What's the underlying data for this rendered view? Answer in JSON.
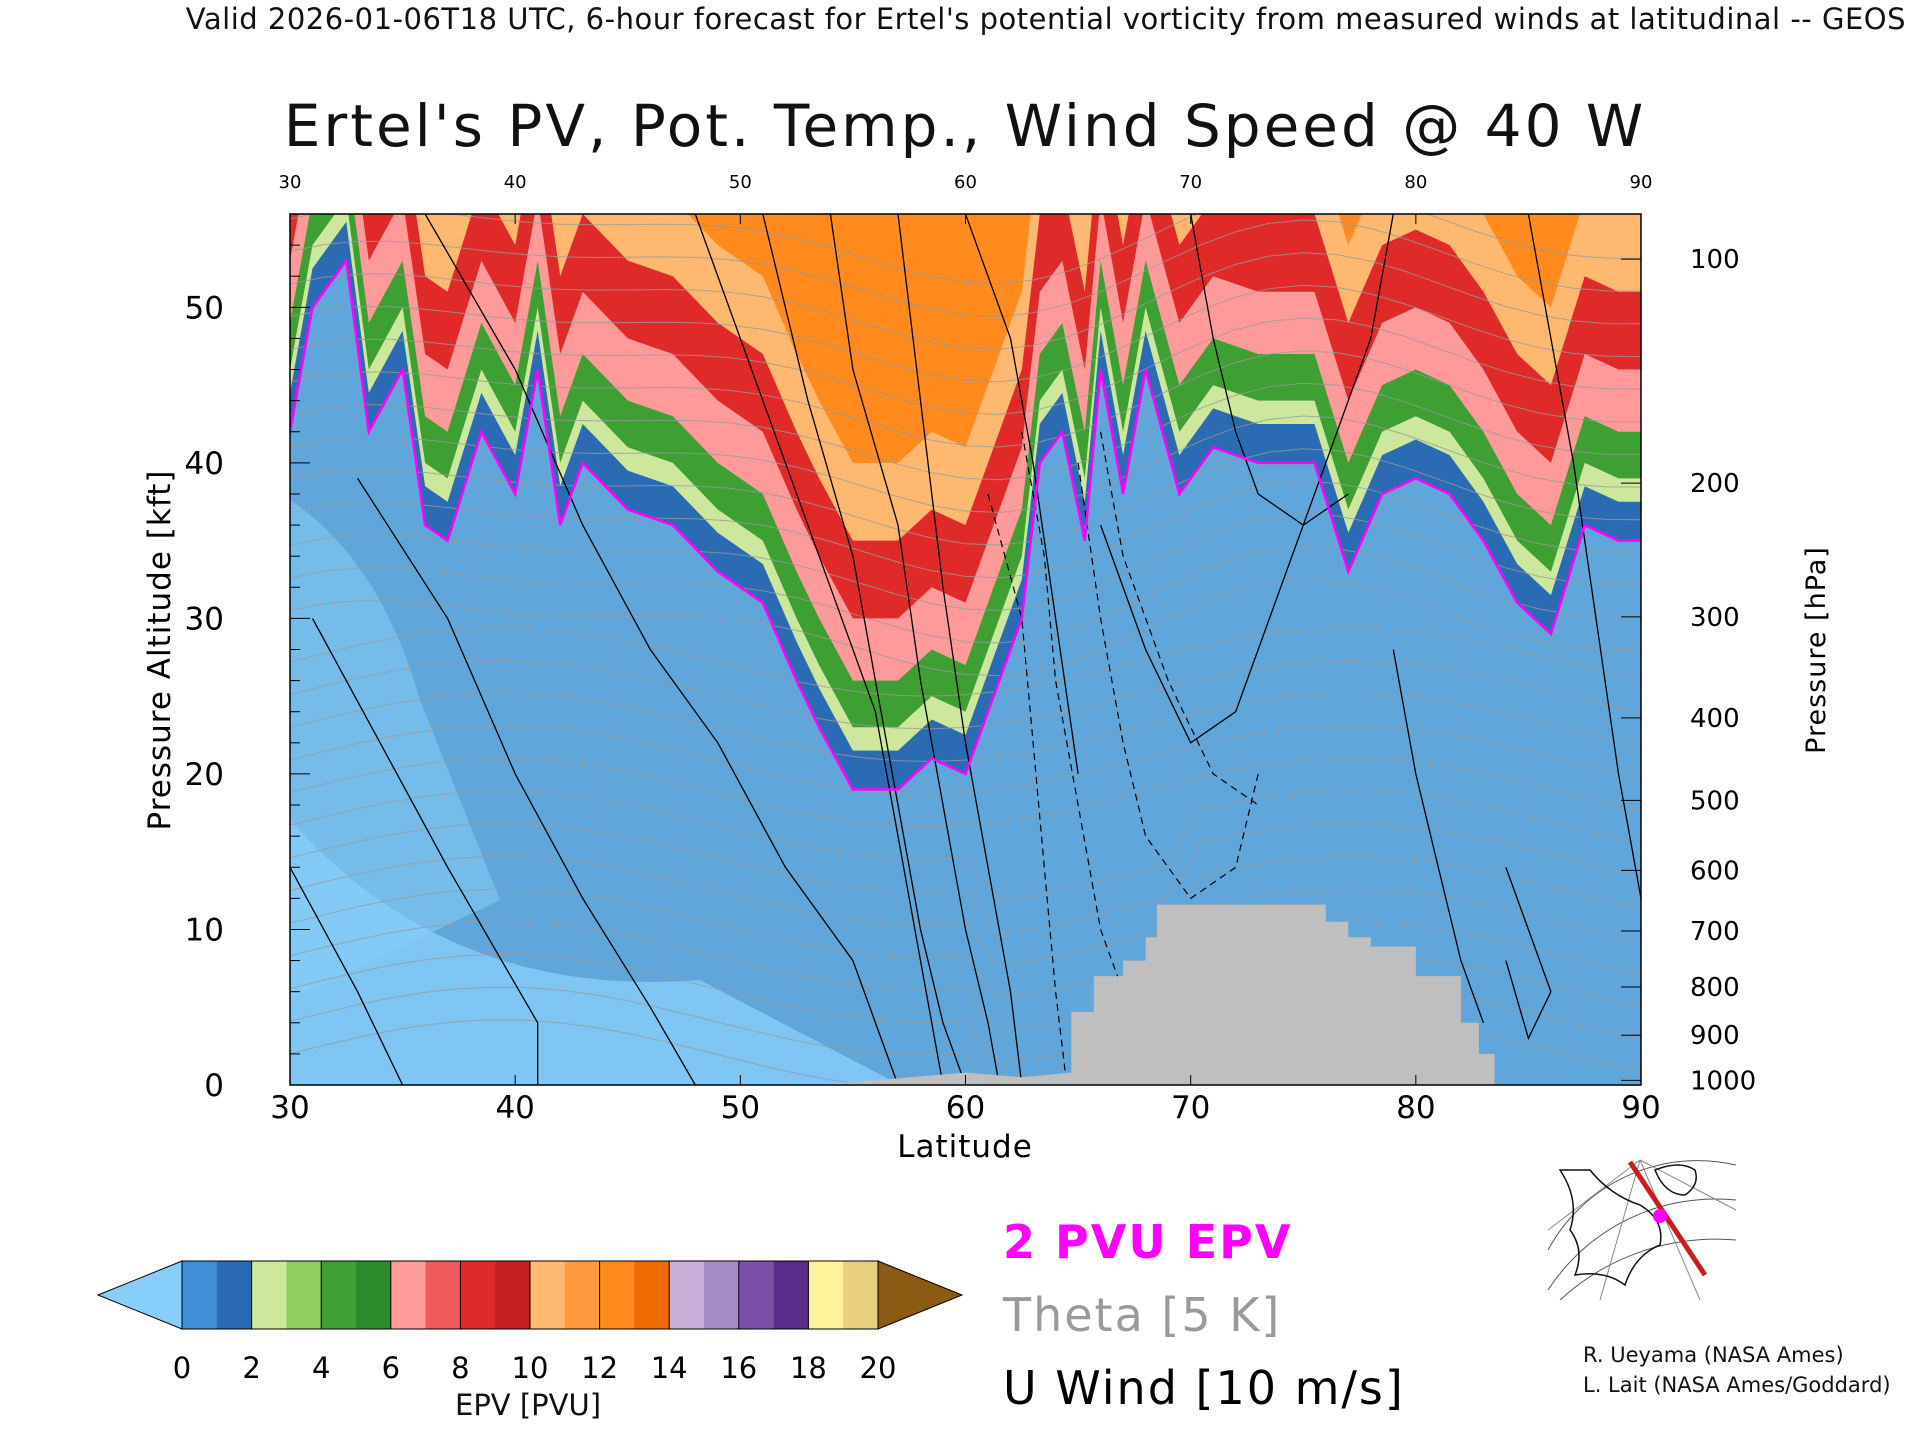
{
  "header": "Valid 2026-01-06T18 UTC, 6-hour forecast for Ertel's potential vorticity from measured winds at latitudinal -- GEOS",
  "chart_data": {
    "type": "heatmap",
    "title": "Ertel's PV, Pot. Temp., Wind Speed @ 40 W",
    "xlabel": "Latitude",
    "ylabel": "Pressure Altitude [kft]",
    "y2label": "Pressure [hPa]",
    "xlim": [
      30,
      90
    ],
    "ylim": [
      0,
      56
    ],
    "x_ticks": [
      "30",
      "40",
      "50",
      "60",
      "70",
      "80",
      "90"
    ],
    "top_ticks": [
      "30",
      "40",
      "50",
      "60",
      "70",
      "80",
      "90"
    ],
    "y_ticks": [
      "0",
      "10",
      "20",
      "30",
      "40",
      "50"
    ],
    "pressure_ticks": [
      {
        "label": "1000",
        "alt": 0.3
      },
      {
        "label": "900",
        "alt": 3.2
      },
      {
        "label": "800",
        "alt": 6.3
      },
      {
        "label": "700",
        "alt": 9.9
      },
      {
        "label": "600",
        "alt": 13.8
      },
      {
        "label": "500",
        "alt": 18.3
      },
      {
        "label": "400",
        "alt": 23.6
      },
      {
        "label": "300",
        "alt": 30.1
      },
      {
        "label": "200",
        "alt": 38.7
      },
      {
        "label": "100",
        "alt": 53.1
      }
    ],
    "two_pvu_tropopause": {
      "name": "2 PVU EPV",
      "color": "#ff00ff",
      "lat": [
        30,
        31,
        32.5,
        33.5,
        35,
        36,
        37,
        38.5,
        40,
        41,
        42,
        43,
        45,
        47,
        49,
        51,
        52.5,
        53.5,
        55,
        57,
        58.5,
        60,
        61,
        62.5,
        63.3,
        64.3,
        65.3,
        66,
        67,
        68,
        69.5,
        71,
        73,
        75.5,
        77,
        78.5,
        80,
        81.5,
        83,
        84.5,
        86,
        87.5,
        89,
        90
      ],
      "alt": [
        42,
        50,
        53,
        42,
        46,
        36,
        35,
        42,
        38,
        46,
        36,
        40,
        37,
        36,
        33,
        31,
        26,
        23,
        19,
        19,
        21,
        20,
        24,
        30,
        40,
        42,
        35,
        46,
        38,
        46,
        38,
        41,
        40,
        40,
        33,
        38,
        39,
        38,
        35,
        31,
        29,
        36,
        35,
        35
      ]
    },
    "surface_terrain": {
      "color": "#bfbfbf",
      "lat": [
        53.5,
        60,
        62.5,
        64.7,
        64.7,
        65.7,
        65.7,
        67,
        67,
        68,
        68,
        68.5,
        68.5,
        76,
        76,
        77,
        77,
        78,
        78,
        80,
        80,
        82,
        82,
        82.8,
        82.8,
        83.5,
        83.5
      ],
      "alt": [
        0,
        0.8,
        0.5,
        0.8,
        4.7,
        4.7,
        7,
        7,
        8,
        8,
        9.5,
        9.5,
        11.6,
        11.6,
        10.5,
        10.5,
        9.5,
        9.5,
        8.9,
        8.9,
        7,
        7,
        4,
        4,
        2,
        2,
        0
      ]
    },
    "epv_colorbar": {
      "label": "EPV [PVU]",
      "ticks": [
        "0",
        "2",
        "4",
        "6",
        "8",
        "10",
        "12",
        "14",
        "16",
        "18",
        "20"
      ],
      "colors": [
        "#3f8fd6",
        "#2a6bb3",
        "#cde89c",
        "#8fcf5f",
        "#3e9f33",
        "#2a8b2a",
        "#ff9a9a",
        "#ef5a5a",
        "#e02a2a",
        "#c41e1e",
        "#ffb870",
        "#ff9a40",
        "#ff8a1e",
        "#ef6a00",
        "#c8b0d8",
        "#a68cc6",
        "#7a4fa8",
        "#5a2d8a",
        "#fff39a",
        "#e8d080"
      ],
      "under_color": "#87cefa",
      "over_color": "#8b5a13"
    },
    "series": [
      {
        "name": "2 PVU EPV",
        "color": "#ff00ff"
      },
      {
        "name": "Theta [5 K]",
        "color": "#9a9a9a"
      },
      {
        "name": "U Wind [10 m/s]",
        "color": "#000000"
      }
    ]
  },
  "legend": {
    "epv": "2 PVU EPV",
    "theta": "Theta [5 K]",
    "wind": "U Wind [10 m/s]"
  },
  "credits": {
    "line1": "R. Ueyama (NASA Ames)",
    "line2": "L. Lait (NASA Ames/Goddard)"
  }
}
